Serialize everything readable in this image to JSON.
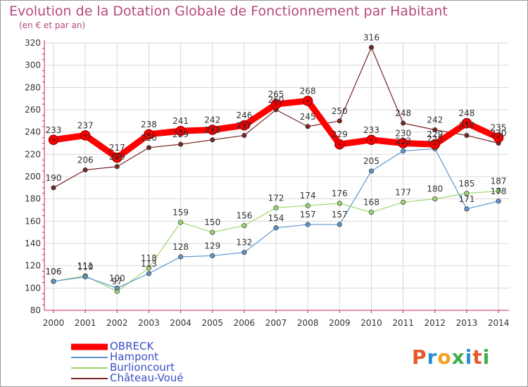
{
  "title": "Evolution de la Dotation Globale de Fonctionnement par Habitant",
  "subtitle": "(en € et par an)",
  "logo": {
    "text": "Proxiti",
    "colors": [
      "#e8562a",
      "#2a8fd6",
      "#f2a21c",
      "#3fae49",
      "#2a8fd6",
      "#e8562a",
      "#3fae49"
    ]
  },
  "chart_data": {
    "type": "line",
    "title": "Evolution de la Dotation Globale de Fonctionnement par Habitant",
    "subtitle": "(en € et par an)",
    "xlabel": "",
    "ylabel": "",
    "ylim": [
      80,
      320
    ],
    "yticks": [
      "80",
      "100",
      "120",
      "140",
      "160",
      "180",
      "200",
      "220",
      "240",
      "260",
      "280",
      "300",
      "320"
    ],
    "categories": [
      "2000",
      "2001",
      "2002",
      "2003",
      "2004",
      "2005",
      "2006",
      "2007",
      "2008",
      "2009",
      "2010",
      "2011",
      "2012",
      "2013",
      "2014"
    ],
    "grid": true,
    "legend_position": "bottom-left",
    "series": [
      {
        "name": "Château-Voué",
        "color": "#7a2323",
        "width": 1.2,
        "values": [
          190,
          206,
          209,
          226,
          229,
          233,
          237,
          260,
          245,
          250,
          316,
          248,
          242,
          237,
          230
        ],
        "labels": [
          "190",
          "206",
          "209",
          "226",
          "229",
          "233",
          "237",
          "260",
          "245",
          "250",
          "316",
          "248",
          "242",
          "237",
          "230"
        ]
      },
      {
        "name": "Burlioncourt",
        "color": "#9dd86b",
        "width": 1.2,
        "values": [
          106,
          111,
          97,
          118,
          159,
          150,
          156,
          172,
          174,
          176,
          168,
          177,
          180,
          185,
          187
        ],
        "labels": [
          "106",
          "111",
          "97",
          "118",
          "159",
          "150",
          "156",
          "172",
          "174",
          "176",
          "168",
          "177",
          "180",
          "185",
          "187"
        ]
      },
      {
        "name": "Hampont",
        "color": "#5b95cf",
        "width": 1.2,
        "values": [
          106,
          110,
          100,
          113,
          128,
          129,
          132,
          154,
          157,
          157,
          205,
          223,
          225,
          171,
          178
        ],
        "labels": [
          "106",
          "110",
          "100",
          "113",
          "128",
          "129",
          "132",
          "154",
          "157",
          "157",
          "205",
          "223",
          "225",
          "171",
          "178"
        ]
      },
      {
        "name": "OBRECK",
        "color": "#ff0000",
        "width": 9,
        "values": [
          233,
          237,
          217,
          238,
          241,
          242,
          246,
          265,
          268,
          229,
          233,
          230,
          229,
          248,
          235
        ],
        "labels": [
          "233",
          "237",
          "217",
          "238",
          "241",
          "242",
          "246",
          "265",
          "268",
          "229",
          "233",
          "230",
          "229",
          "248",
          "235"
        ]
      }
    ],
    "legend": [
      "OBRECK",
      "Hampont",
      "Burlioncourt",
      "Château-Voué"
    ]
  }
}
